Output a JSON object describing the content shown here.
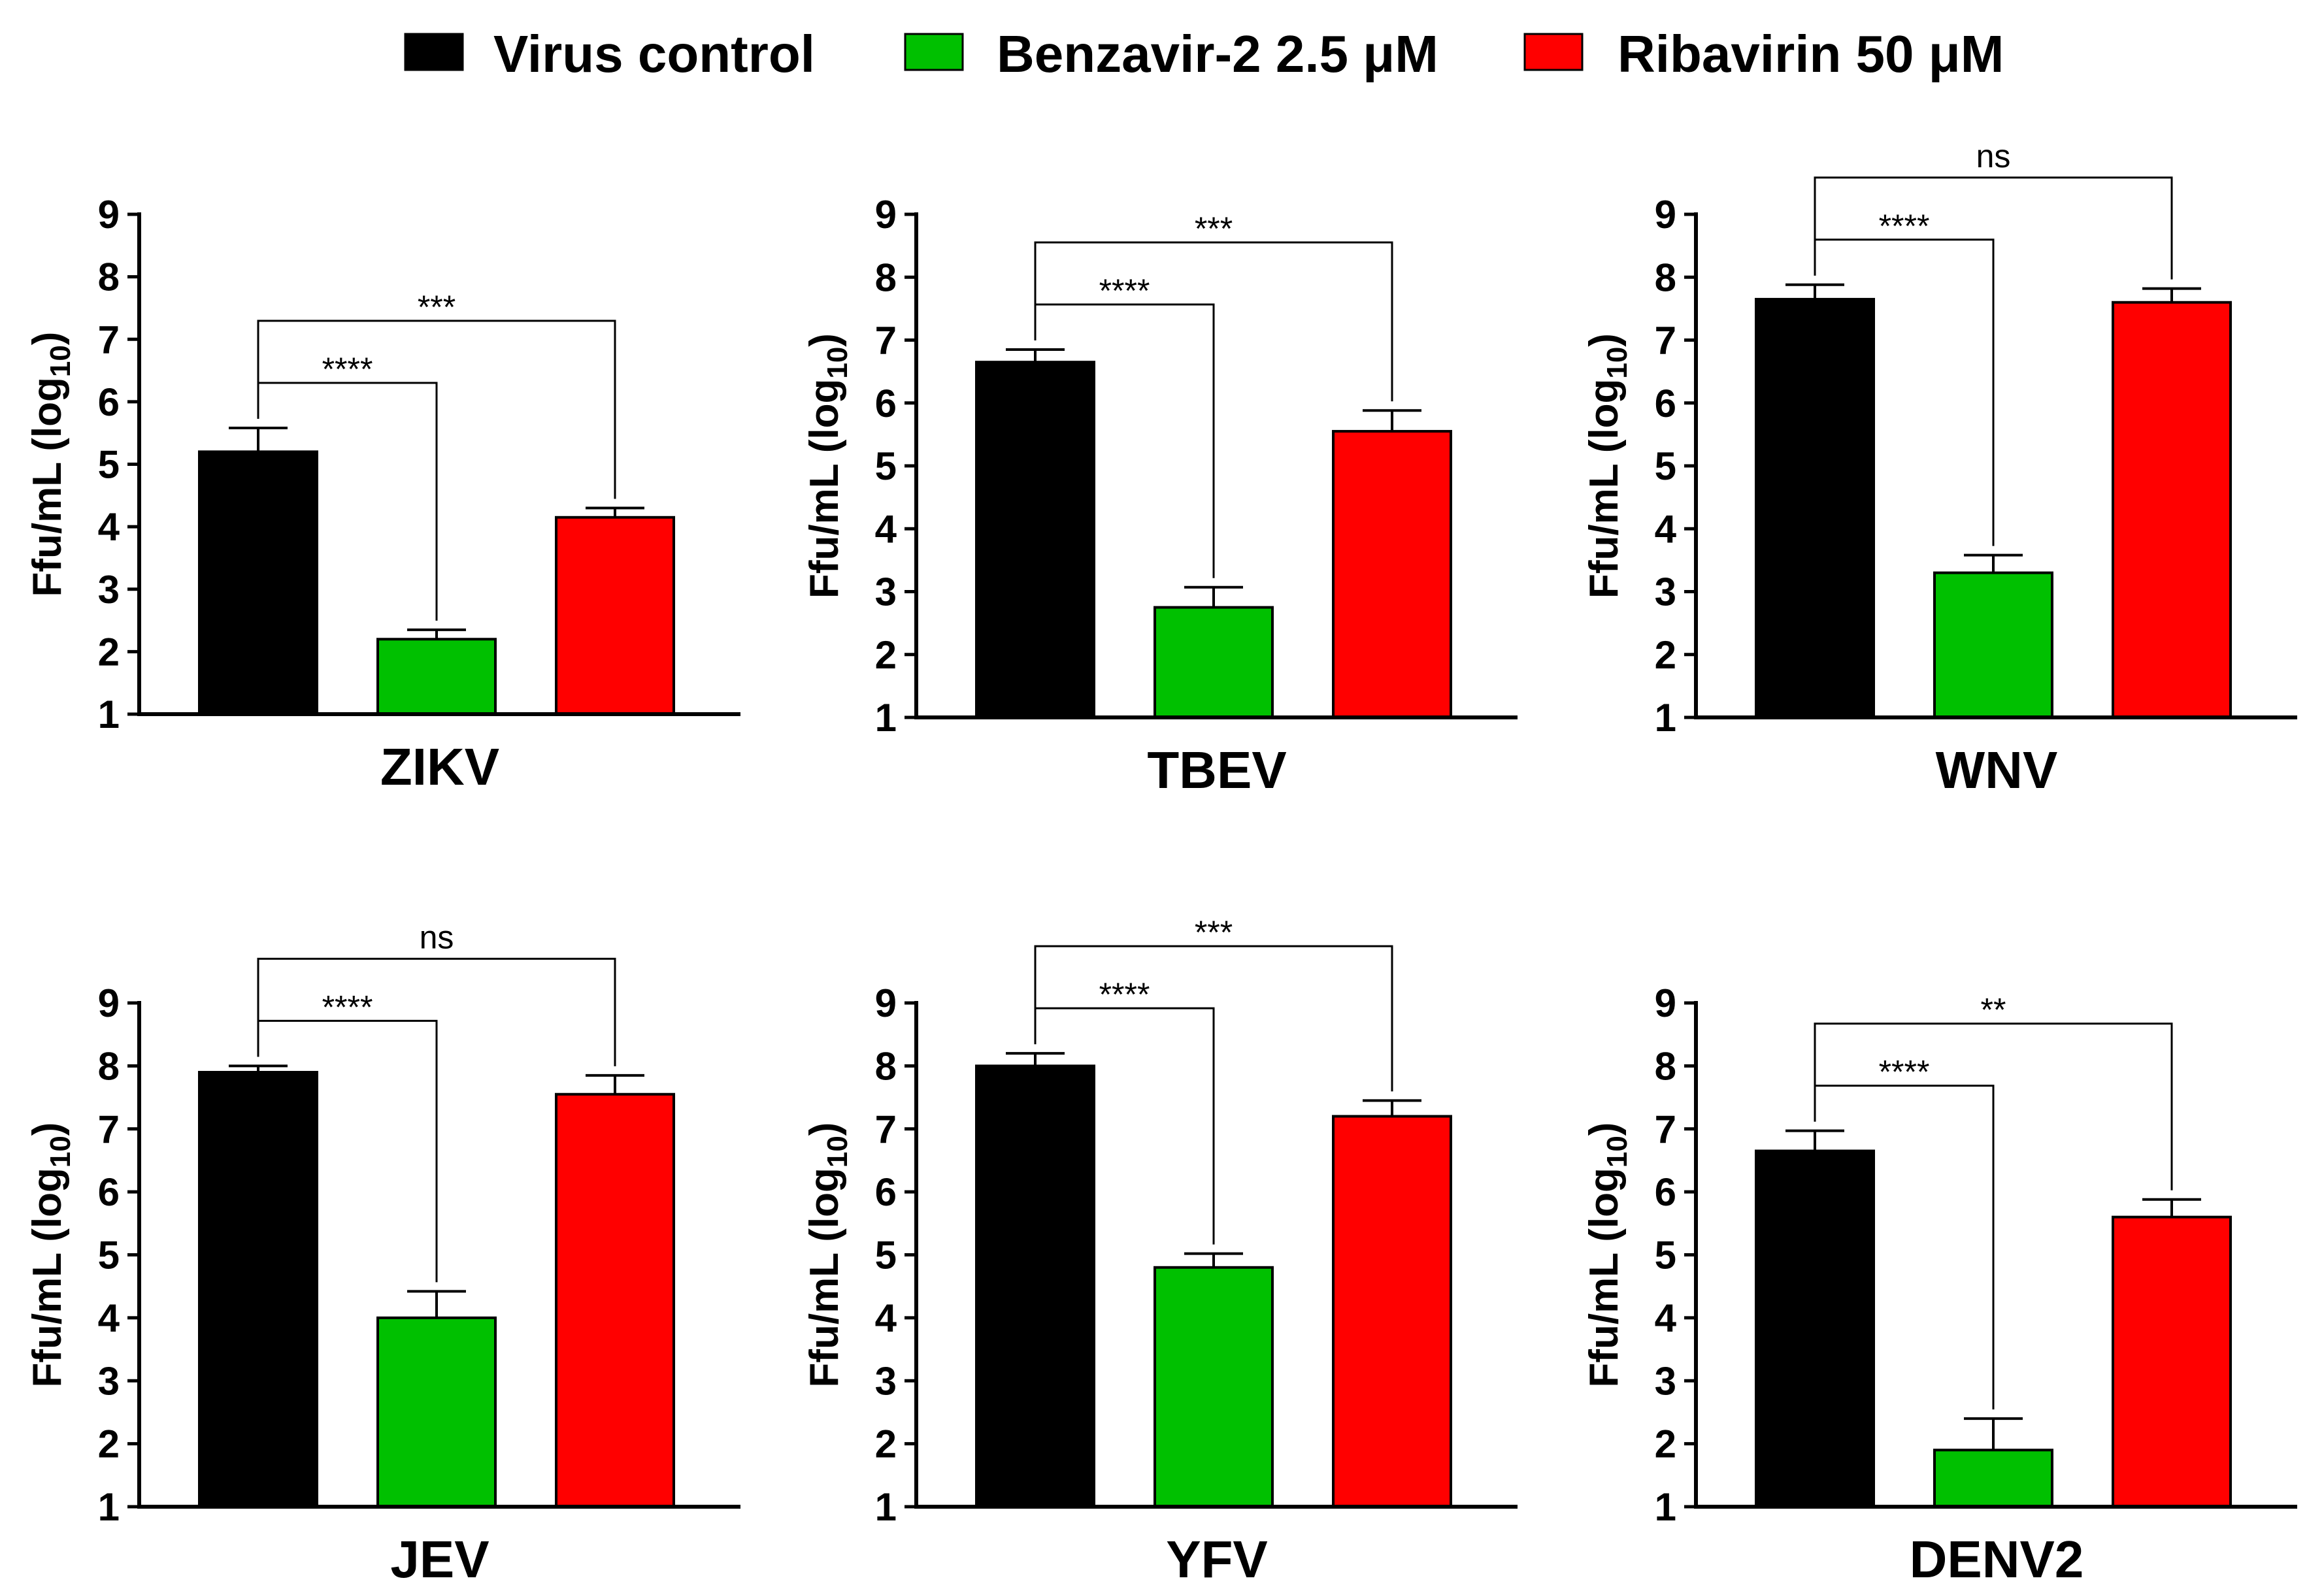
{
  "legend": [
    {
      "label": "Virus control",
      "color": "#000000"
    },
    {
      "label": "Benzavir-2 2.5 μM",
      "color": "#00c000"
    },
    {
      "label": "Ribavirin 50 μM",
      "color": "#ff0000"
    }
  ],
  "chart_data": [
    {
      "type": "bar",
      "title": "ZIKV",
      "xlabel": "ZIKV",
      "ylabel": "Ffu/mL (log10)",
      "ylabel_main": "Ffu/mL (log",
      "ylabel_sub": "10",
      "ylabel_close": ")",
      "ylim": [
        1,
        9
      ],
      "yticks": [
        1,
        2,
        3,
        4,
        5,
        6,
        7,
        8,
        9
      ],
      "categories": [
        "Virus control",
        "Benzavir-2 2.5 μM",
        "Ribavirin 50 μM"
      ],
      "values": [
        5.2,
        2.2,
        4.15
      ],
      "errors": [
        0.38,
        0.15,
        0.15
      ],
      "comparisons": [
        {
          "to": 1,
          "label": "****"
        },
        {
          "to": 2,
          "label": "***"
        }
      ]
    },
    {
      "type": "bar",
      "title": "TBEV",
      "xlabel": "TBEV",
      "ylabel": "Ffu/mL (log10)",
      "ylabel_main": "Ffu/mL (log",
      "ylabel_sub": "10",
      "ylabel_close": ")",
      "ylim": [
        1,
        9
      ],
      "yticks": [
        1,
        2,
        3,
        4,
        5,
        6,
        7,
        8,
        9
      ],
      "categories": [
        "Virus control",
        "Benzavir-2 2.5 μM",
        "Ribavirin 50 μM"
      ],
      "values": [
        6.65,
        2.75,
        5.55
      ],
      "errors": [
        0.2,
        0.32,
        0.33
      ],
      "comparisons": [
        {
          "to": 1,
          "label": "****"
        },
        {
          "to": 2,
          "label": "***"
        }
      ]
    },
    {
      "type": "bar",
      "title": "WNV",
      "xlabel": "WNV",
      "ylabel": "Ffu/mL (log10)",
      "ylabel_main": "Ffu/mL (log",
      "ylabel_sub": "10",
      "ylabel_close": ")",
      "ylim": [
        1,
        9
      ],
      "yticks": [
        1,
        2,
        3,
        4,
        5,
        6,
        7,
        8,
        9
      ],
      "categories": [
        "Virus control",
        "Benzavir-2 2.5 μM",
        "Ribavirin 50 μM"
      ],
      "values": [
        7.65,
        3.3,
        7.6
      ],
      "errors": [
        0.23,
        0.28,
        0.22
      ],
      "comparisons": [
        {
          "to": 1,
          "label": "****"
        },
        {
          "to": 2,
          "label": "ns"
        }
      ]
    },
    {
      "type": "bar",
      "title": "JEV",
      "xlabel": "JEV",
      "ylabel": "Ffu/mL (log10)",
      "ylabel_main": "Ffu/mL (log",
      "ylabel_sub": "10",
      "ylabel_close": ")",
      "ylim": [
        1,
        9
      ],
      "yticks": [
        1,
        2,
        3,
        4,
        5,
        6,
        7,
        8,
        9
      ],
      "categories": [
        "Virus control",
        "Benzavir-2 2.5 μM",
        "Ribavirin 50 μM"
      ],
      "values": [
        7.9,
        4.0,
        7.55
      ],
      "errors": [
        0.1,
        0.42,
        0.3
      ],
      "comparisons": [
        {
          "to": 1,
          "label": "****"
        },
        {
          "to": 2,
          "label": "ns"
        }
      ]
    },
    {
      "type": "bar",
      "title": "YFV",
      "xlabel": "YFV",
      "ylabel": "Ffu/mL (log10)",
      "ylabel_main": "Ffu/mL (log",
      "ylabel_sub": "10",
      "ylabel_close": ")",
      "ylim": [
        1,
        9
      ],
      "yticks": [
        1,
        2,
        3,
        4,
        5,
        6,
        7,
        8,
        9
      ],
      "categories": [
        "Virus control",
        "Benzavir-2 2.5 μM",
        "Ribavirin 50 μM"
      ],
      "values": [
        8.0,
        4.8,
        7.2
      ],
      "errors": [
        0.2,
        0.22,
        0.25
      ],
      "comparisons": [
        {
          "to": 1,
          "label": "****"
        },
        {
          "to": 2,
          "label": "***"
        }
      ]
    },
    {
      "type": "bar",
      "title": "DENV2",
      "xlabel": "DENV2",
      "ylabel": "Ffu/mL (log10)",
      "ylabel_main": "Ffu/mL (log",
      "ylabel_sub": "10",
      "ylabel_close": ")",
      "ylim": [
        1,
        9
      ],
      "yticks": [
        1,
        2,
        3,
        4,
        5,
        6,
        7,
        8,
        9
      ],
      "categories": [
        "Virus control",
        "Benzavir-2 2.5 μM",
        "Ribavirin 50 μM"
      ],
      "values": [
        6.65,
        1.9,
        5.6
      ],
      "errors": [
        0.32,
        0.5,
        0.28
      ],
      "comparisons": [
        {
          "to": 1,
          "label": "****"
        },
        {
          "to": 2,
          "label": "**"
        }
      ]
    }
  ]
}
